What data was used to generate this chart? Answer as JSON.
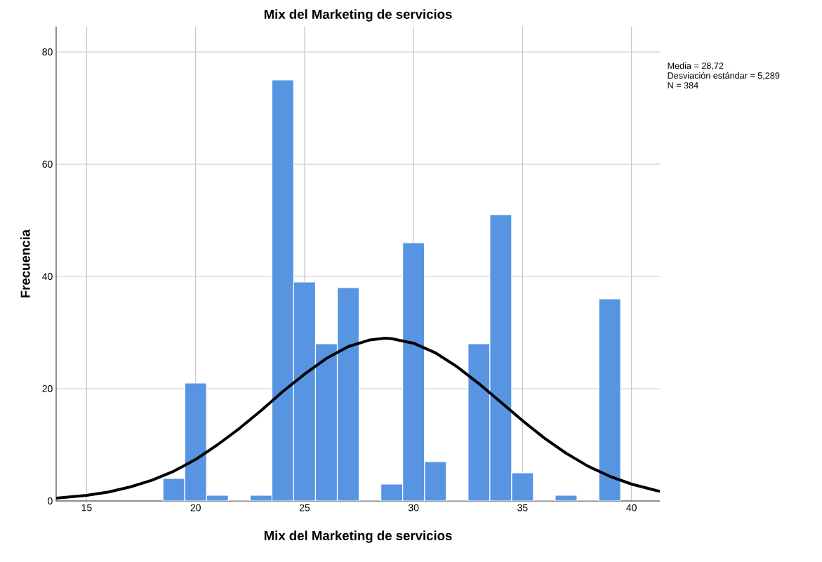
{
  "chart_data": {
    "type": "histogram",
    "title": "Mix del Marketing de servicios",
    "xlabel": "Mix del Marketing de servicios",
    "ylabel": "Frecuencia",
    "annotations": [
      "Media = 28,72",
      "Desviación estándar = 5,289",
      "N = 384"
    ],
    "bins": [
      18.5,
      19.5,
      20.5,
      21.5,
      22.5,
      23.5,
      24.5,
      25.5,
      26.5,
      27.5,
      28.5,
      29.5,
      30.5,
      31.5,
      32.5,
      33.5,
      34.5,
      35.5,
      36.5,
      37.5,
      38.5,
      39.5
    ],
    "values": [
      4,
      21,
      1,
      0,
      1,
      75,
      39,
      28,
      38,
      0,
      3,
      46,
      7,
      0,
      28,
      51,
      5,
      0,
      1,
      0,
      36
    ],
    "color": "#5795e3",
    "series": [
      {
        "type": "line",
        "color": "#000000",
        "x": [
          13.6,
          15,
          16,
          17,
          18,
          19,
          20,
          21,
          22,
          23,
          24,
          25,
          26,
          27,
          28,
          28.7,
          29,
          30,
          31,
          32,
          33,
          34,
          35,
          36,
          37,
          38,
          39,
          40,
          41,
          41.3
        ],
        "values": [
          0.5,
          1.0,
          1.6,
          2.5,
          3.7,
          5.3,
          7.4,
          10.0,
          12.9,
          16.1,
          19.5,
          22.6,
          25.4,
          27.5,
          28.7,
          29.0,
          28.9,
          28.1,
          26.4,
          23.9,
          20.9,
          17.6,
          14.3,
          11.2,
          8.5,
          6.2,
          4.4,
          3.0,
          2.0,
          1.7
        ]
      }
    ],
    "xlim": [
      13.6,
      41.3
    ],
    "ylim": [
      0,
      84.5
    ],
    "xticks": [
      15,
      20,
      25,
      30,
      35,
      40
    ],
    "yticks": [
      0,
      20,
      40,
      60,
      80
    ],
    "grid": true,
    "marker": "none",
    "line_style": "solid"
  }
}
